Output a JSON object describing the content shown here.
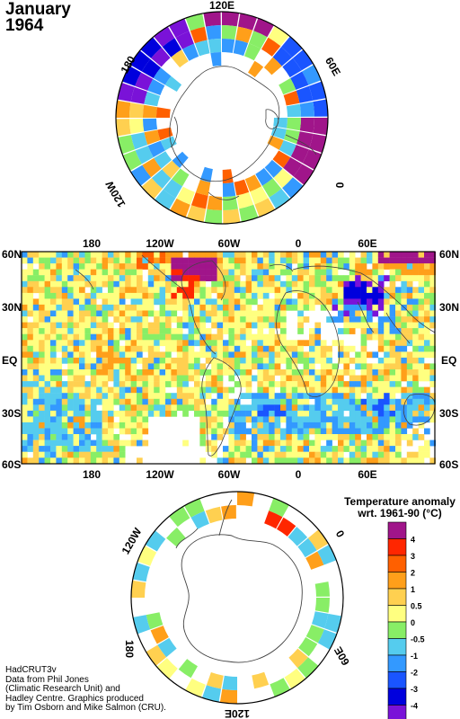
{
  "title": {
    "month": "January",
    "year": "1964"
  },
  "north_polar": {
    "lon_labels": [
      "120E",
      "180",
      "60E",
      "120W",
      "0"
    ]
  },
  "map": {
    "lat_labels": [
      "60N",
      "30N",
      "EQ",
      "30S",
      "60S"
    ],
    "lon_labels": [
      "180",
      "120W",
      "60W",
      "0",
      "60E"
    ]
  },
  "south_polar": {
    "lon_labels": [
      "120W",
      "0",
      "180",
      "60E",
      "120E"
    ]
  },
  "legend": {
    "title_line1": "Temperature anomaly",
    "title_line2": "wrt. 1961-90  (°C)",
    "classes": [
      {
        "color": "#a0158a",
        "label": "4"
      },
      {
        "color": "#ff2600",
        "label": "3"
      },
      {
        "color": "#ff6000",
        "label": "2"
      },
      {
        "color": "#ff9f1a",
        "label": "1"
      },
      {
        "color": "#ffd050",
        "label": "0.5"
      },
      {
        "color": "#ffff80",
        "label": "0"
      },
      {
        "color": "#88ee66",
        "label": "-0.5"
      },
      {
        "color": "#55ccee",
        "label": "-1"
      },
      {
        "color": "#3399ff",
        "label": "-2"
      },
      {
        "color": "#1a55ff",
        "label": "-3"
      },
      {
        "color": "#0000dd",
        "label": "-4"
      },
      {
        "color": "#7a12d8",
        "label": ""
      }
    ]
  },
  "credits": [
    "HadCRUT3v",
    "Data from Phil Jones",
    "(Climatic Research Unit) and",
    "Hadley Centre.  Graphics produced",
    "by Tim Osborn and Mike Salmon (CRU)."
  ]
}
